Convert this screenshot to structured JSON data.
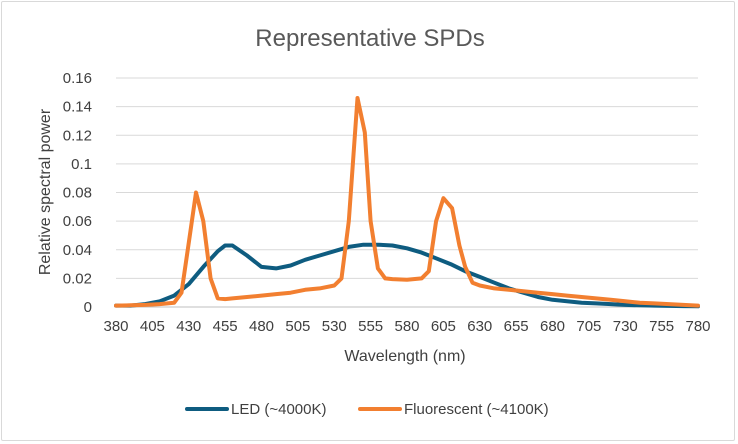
{
  "chart_data": {
    "type": "line",
    "title": "Representative SPDs",
    "xlabel": "Wavelength (nm)",
    "ylabel": "Relative spectral power",
    "xlim": [
      380,
      780
    ],
    "ylim": [
      0,
      0.16
    ],
    "x_ticks": [
      "380",
      "405",
      "430",
      "455",
      "480",
      "505",
      "530",
      "555",
      "580",
      "605",
      "630",
      "655",
      "680",
      "705",
      "730",
      "755",
      "780"
    ],
    "y_ticks": [
      "0",
      "0.02",
      "0.04",
      "0.06",
      "0.08",
      "0.1",
      "0.12",
      "0.14",
      "0.16"
    ],
    "grid": true,
    "legend_position": "bottom",
    "series": [
      {
        "name": "LED (~4000K)",
        "color": "#0e5c80",
        "x": [
          380,
          390,
          400,
          410,
          420,
          430,
          440,
          450,
          455,
          460,
          470,
          480,
          490,
          500,
          510,
          520,
          530,
          540,
          550,
          560,
          570,
          580,
          590,
          600,
          610,
          620,
          630,
          640,
          650,
          660,
          670,
          680,
          690,
          700,
          710,
          720,
          730,
          740,
          750,
          760,
          770,
          780
        ],
        "y": [
          0.001,
          0.001,
          0.002,
          0.004,
          0.008,
          0.016,
          0.028,
          0.039,
          0.043,
          0.043,
          0.036,
          0.028,
          0.027,
          0.029,
          0.033,
          0.036,
          0.039,
          0.042,
          0.0435,
          0.0435,
          0.043,
          0.041,
          0.038,
          0.034,
          0.03,
          0.025,
          0.021,
          0.017,
          0.013,
          0.01,
          0.007,
          0.005,
          0.004,
          0.003,
          0.0025,
          0.002,
          0.0015,
          0.0012,
          0.001,
          0.0008,
          0.0006,
          0.0005
        ]
      },
      {
        "name": "Fluorescent (~4100K)",
        "color": "#f27f30",
        "x": [
          380,
          390,
          400,
          410,
          420,
          425,
          430,
          435,
          440,
          445,
          450,
          455,
          460,
          470,
          480,
          490,
          500,
          510,
          520,
          530,
          535,
          540,
          546,
          551,
          555,
          560,
          565,
          570,
          580,
          590,
          595,
          600,
          605,
          611,
          616,
          620,
          625,
          630,
          640,
          650,
          660,
          670,
          680,
          690,
          700,
          710,
          720,
          730,
          740,
          750,
          760,
          770,
          780
        ],
        "y": [
          0.001,
          0.0012,
          0.0015,
          0.002,
          0.003,
          0.01,
          0.045,
          0.08,
          0.06,
          0.02,
          0.006,
          0.0055,
          0.006,
          0.007,
          0.008,
          0.009,
          0.01,
          0.012,
          0.013,
          0.015,
          0.02,
          0.06,
          0.146,
          0.122,
          0.06,
          0.027,
          0.02,
          0.0195,
          0.019,
          0.02,
          0.025,
          0.06,
          0.076,
          0.069,
          0.043,
          0.028,
          0.017,
          0.015,
          0.013,
          0.012,
          0.011,
          0.01,
          0.009,
          0.008,
          0.007,
          0.006,
          0.005,
          0.004,
          0.003,
          0.0025,
          0.002,
          0.0015,
          0.001
        ]
      }
    ]
  }
}
